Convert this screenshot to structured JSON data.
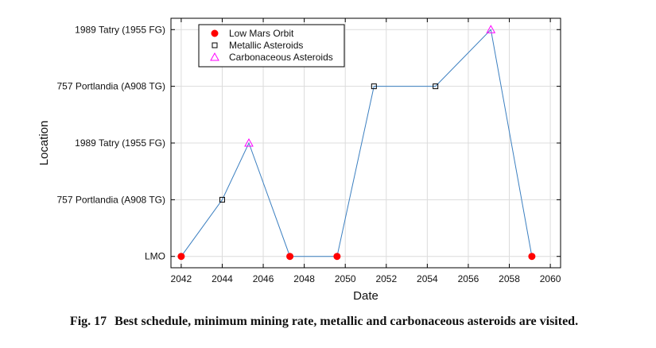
{
  "chart_data": {
    "type": "line",
    "xlabel": "Date",
    "ylabel": "Location",
    "xlim": [
      2041.5,
      2060.5
    ],
    "ylim": [
      -0.2,
      4.2
    ],
    "x_ticks": [
      2042,
      2044,
      2046,
      2048,
      2050,
      2052,
      2054,
      2056,
      2058,
      2060
    ],
    "y_tick_labels": [
      "LMO",
      "757 Portlandia (A908 TG)",
      "1989 Tatry (1955 FG)",
      "757 Portlandia (A908 TG)",
      "1989 Tatry (1955 FG)"
    ],
    "grid": true,
    "legend_position": "top-left",
    "path": {
      "name": "schedule",
      "x": [
        2042.0,
        2044.0,
        2045.3,
        2047.3,
        2049.6,
        2051.4,
        2054.4,
        2057.1,
        2059.1
      ],
      "y": [
        0,
        1,
        2,
        0,
        0,
        3,
        3,
        4,
        0
      ]
    },
    "series": [
      {
        "name": "Low Mars Orbit",
        "marker": "filled-circle",
        "color": "#ff0000",
        "points": [
          [
            2042.0,
            0
          ],
          [
            2047.3,
            0
          ],
          [
            2049.6,
            0
          ],
          [
            2059.1,
            0
          ]
        ]
      },
      {
        "name": "Metallic Asteroids",
        "marker": "square",
        "color": "#000000",
        "points": [
          [
            2044.0,
            1
          ],
          [
            2051.4,
            3
          ],
          [
            2054.4,
            3
          ]
        ]
      },
      {
        "name": "Carbonaceous Asteroids",
        "marker": "triangle",
        "color": "#ff00ff",
        "points": [
          [
            2045.3,
            2
          ],
          [
            2057.1,
            4
          ]
        ]
      }
    ],
    "line_color": "#3b7fc0"
  },
  "caption": {
    "label": "Fig. 17",
    "text": "Best schedule, minimum mining rate, metallic and carbonaceous asteroids are visited."
  }
}
